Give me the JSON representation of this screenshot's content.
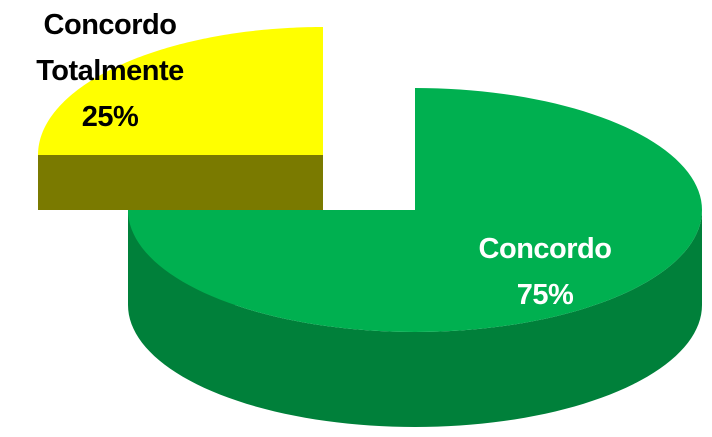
{
  "chart_data": {
    "type": "pie",
    "categories": [
      "Concordo Totalmente",
      "Concordo"
    ],
    "values": [
      25,
      75
    ],
    "value_labels": [
      "25%",
      "75%"
    ],
    "colors": [
      "#ffff00",
      "#00b050"
    ]
  }
}
